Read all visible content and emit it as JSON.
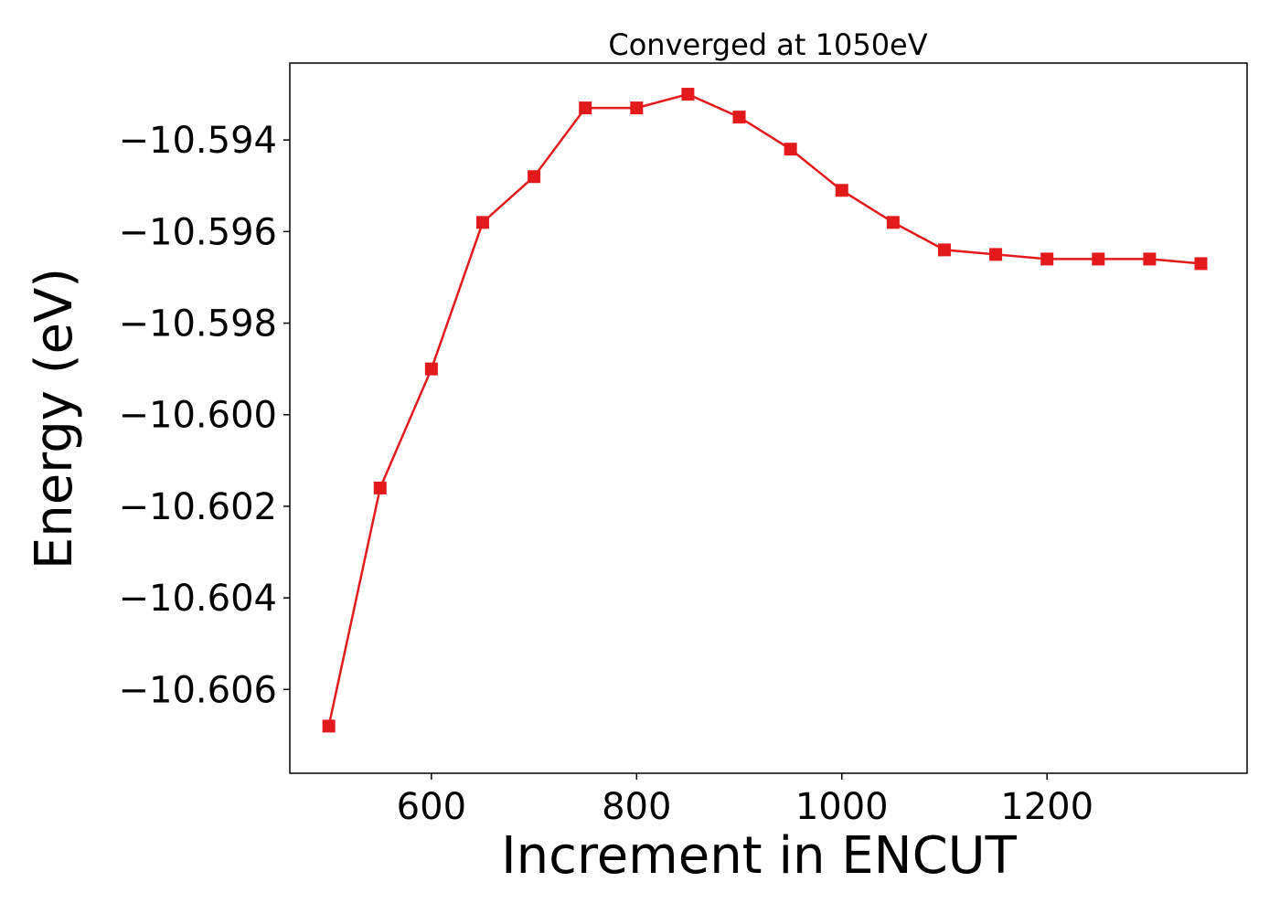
{
  "chart_data": {
    "type": "line",
    "title": "Converged at 1050eV",
    "xlabel": "Increment in ENCUT",
    "ylabel": "Energy (eV)",
    "xlim": [
      462,
      1395
    ],
    "ylim": [
      -10.60783,
      -10.59232
    ],
    "xticks": [
      600,
      800,
      1000,
      1200
    ],
    "xtick_labels": [
      "600",
      "800",
      "1000",
      "1200"
    ],
    "yticks": [
      -10.594,
      -10.596,
      -10.598,
      -10.6,
      -10.602,
      -10.604,
      -10.606
    ],
    "ytick_labels": [
      "−10.594",
      "−10.596",
      "−10.598",
      "−10.600",
      "−10.602",
      "−10.604",
      "−10.606"
    ],
    "grid": false,
    "legend": "none",
    "line_color": "#e31a1c",
    "marker": "square",
    "series": [
      {
        "x": [
          500,
          550,
          600,
          650,
          700,
          750,
          800,
          850,
          900,
          950,
          1000,
          1050,
          1100,
          1150,
          1200,
          1250,
          1300,
          1350
        ],
        "y": [
          -10.6068,
          -10.6016,
          -10.599,
          -10.5958,
          -10.5948,
          -10.5933,
          -10.5933,
          -10.593,
          -10.5935,
          -10.5942,
          -10.5951,
          -10.5958,
          -10.5964,
          -10.5965,
          -10.5966,
          -10.5966,
          -10.5966,
          -10.5967
        ]
      }
    ]
  }
}
